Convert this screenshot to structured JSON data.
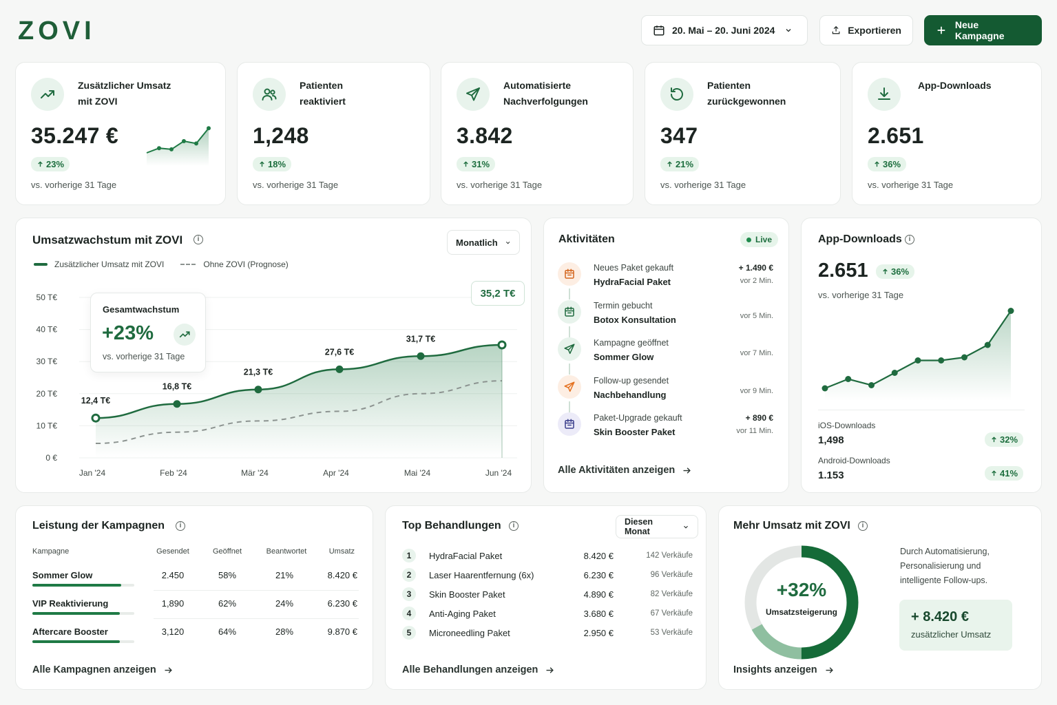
{
  "brand": {
    "name": "ZOVI"
  },
  "header": {
    "date_range": "20. Mai – 20. Juni 2024",
    "export_label": "Exportieren",
    "new_campaign_label": "Neue Kampagne"
  },
  "kpis": [
    {
      "label_line1": "Zusätzlicher Umsatz",
      "label_line2": "mit ZOVI",
      "value": "35.247 €",
      "change": "23%",
      "sub": "vs. vorherige 31 Tage",
      "icon": "trending-up-icon"
    },
    {
      "label_line1": "Patienten",
      "label_line2": "reaktiviert",
      "value": "1,248",
      "change": "18%",
      "sub": "vs. vorherige 31 Tage",
      "icon": "users-icon"
    },
    {
      "label_line1": "Automatisierte",
      "label_line2": "Nachverfolgungen",
      "value": "3.842",
      "change": "31%",
      "sub": "vs. vorherige 31 Tage",
      "icon": "send-icon"
    },
    {
      "label_line1": "Patienten",
      "label_line2": "zurückgewonnen",
      "value": "347",
      "change": "21%",
      "sub": "vs. vorherige 31 Tage",
      "icon": "refresh-icon"
    },
    {
      "label_line1": "App-Downloads",
      "label_line2": "",
      "value": "2.651",
      "change": "36%",
      "sub": "vs. vorherige 31 Tage",
      "icon": "download-icon"
    }
  ],
  "growth": {
    "title": "Umsatzwachstum mit ZOVI",
    "period_select": "Monatlich",
    "legend_main": "Zusätzlicher Umsatz mit ZOVI",
    "legend_forecast": "Ohne ZOVI (Prognose)",
    "callout_title": "Gesamtwachstum",
    "callout_value": "+23%",
    "callout_sub": "vs. vorherige 31 Tage",
    "last_label": "35,2 T€"
  },
  "chart_data": {
    "type": "line",
    "categories": [
      "Jan '24",
      "Feb '24",
      "Mär '24",
      "Apr '24",
      "Mai '24",
      "Jun '24"
    ],
    "series": [
      {
        "name": "Zusätzlicher Umsatz mit ZOVI",
        "values": [
          12.4,
          16.8,
          21.3,
          27.6,
          31.7,
          35.2
        ],
        "labels": [
          "12,4 T€",
          "16,8 T€",
          "21,3 T€",
          "27,6 T€",
          "31,7 T€",
          "35,2 T€"
        ],
        "color": "#1f6b3f"
      },
      {
        "name": "Ohne ZOVI (Prognose)",
        "values": [
          4.5,
          8.0,
          11.5,
          14.5,
          20.0,
          24.0
        ],
        "color": "#8c9390",
        "dashed": true
      }
    ],
    "ylim": [
      0,
      50
    ],
    "yticks": [
      "0 €",
      "10 T€",
      "20 T€",
      "30 T€",
      "40 T€",
      "50 T€"
    ],
    "grid": true,
    "legend": "top-left"
  },
  "activities": {
    "title": "Aktivitäten",
    "live": "Live",
    "items": [
      {
        "action": "Neues Paket gekauft",
        "detail": "HydraFacial Paket",
        "amount": "+ 1.490 €",
        "time": "vor 2 Min.",
        "icon": "calendar-icon",
        "tint": "#fdeee3",
        "color": "#d4661e"
      },
      {
        "action": "Termin gebucht",
        "detail": "Botox Konsultation",
        "amount": "",
        "time": "vor 5 Min.",
        "icon": "calendar-icon",
        "tint": "#e8f3ec",
        "color": "#1f6b3f"
      },
      {
        "action": "Kampagne geöffnet",
        "detail": "Sommer Glow",
        "amount": "",
        "time": "vor 7 Min.",
        "icon": "send-icon",
        "tint": "#e8f3ec",
        "color": "#1f6b3f"
      },
      {
        "action": "Follow-up gesendet",
        "detail": "Nachbehandlung",
        "amount": "",
        "time": "vor 9 Min.",
        "icon": "send-icon",
        "tint": "#fdeee3",
        "color": "#e4701e"
      },
      {
        "action": "Paket-Upgrade gekauft",
        "detail": "Skin Booster Paket",
        "amount": "+ 890 €",
        "time": "vor 11 Min.",
        "icon": "calendar-icon",
        "tint": "#ecebf8",
        "color": "#3b3f8c"
      }
    ],
    "link": "Alle Aktivitäten anzeigen"
  },
  "app_downloads": {
    "title": "App-Downloads",
    "value": "2.651",
    "change": "36%",
    "sub": "vs. vorherige 31 Tage",
    "trend_values": [
      8,
      14,
      10,
      18,
      26,
      26,
      28,
      36,
      58
    ],
    "ios_label": "iOS-Downloads",
    "ios_value": "1,498",
    "ios_change": "32%",
    "android_label": "Android-Downloads",
    "android_value": "1.153",
    "android_change": "41%"
  },
  "campaigns": {
    "title": "Leistung der Kampagnen",
    "headers": [
      "Kampagne",
      "Gesendet",
      "Geöffnet",
      "Beantwortet",
      "Umsatz"
    ],
    "rows": [
      {
        "name": "Sommer Glow",
        "sent": "2.450",
        "opened": "58%",
        "answered": "21%",
        "revenue": "8.420 €",
        "progress": 0.87
      },
      {
        "name": "VIP Reaktivierung",
        "sent": "1,890",
        "opened": "62%",
        "answered": "24%",
        "revenue": "6.230 €",
        "progress": 0.86
      },
      {
        "name": "Aftercare Booster",
        "sent": "3,120",
        "opened": "64%",
        "answered": "28%",
        "revenue": "9.870 €",
        "progress": 0.86
      }
    ],
    "link": "Alle Kampagnen anzeigen"
  },
  "treatments": {
    "title": "Top Behandlungen",
    "period_select": "Diesen Monat",
    "rows": [
      {
        "rank": "1",
        "name": "HydraFacial Paket",
        "revenue": "8.420 €",
        "sales": "142 Verkäufe"
      },
      {
        "rank": "2",
        "name": "Laser Haarentfernung (6x)",
        "revenue": "6.230 €",
        "sales": "96 Verkäufe"
      },
      {
        "rank": "3",
        "name": "Skin Booster Paket",
        "revenue": "4.890 €",
        "sales": "82 Verkäufe"
      },
      {
        "rank": "4",
        "name": "Anti-Aging Paket",
        "revenue": "3.680 €",
        "sales": "67 Verkäufe"
      },
      {
        "rank": "5",
        "name": "Microneedling Paket",
        "revenue": "2.950 €",
        "sales": "53 Verkäufe"
      }
    ],
    "link": "Alle Behandlungen anzeigen"
  },
  "more_revenue": {
    "title": "Mehr Umsatz mit ZOVI",
    "donut_value": "+32%",
    "donut_label": "Umsatzsteigerung",
    "donut_fraction": 0.5,
    "description": "Durch Automatisierung, Personalisierung und intelligente Follow-ups.",
    "highlight_value": "+ 8.420 €",
    "highlight_label": "zusätzlicher Umsatz",
    "link": "Insights anzeigen"
  }
}
